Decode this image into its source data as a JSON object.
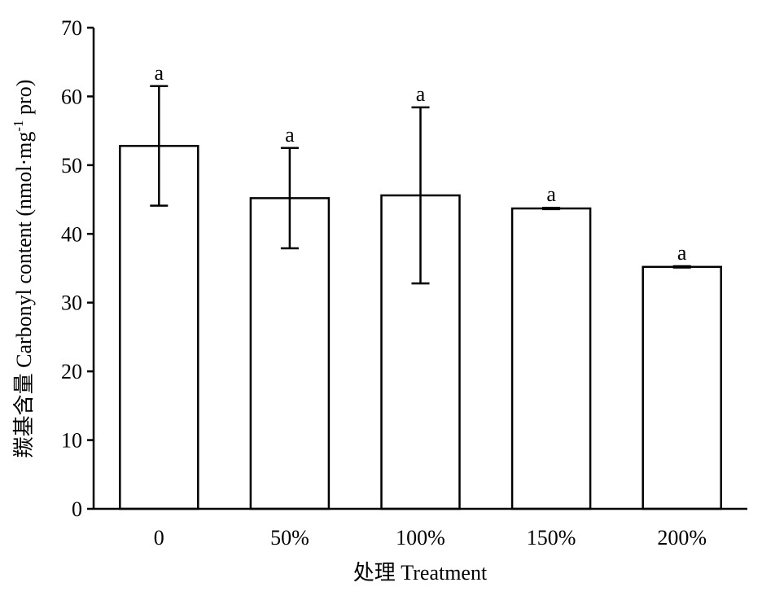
{
  "chart_data": {
    "type": "bar",
    "categories": [
      "0",
      "50%",
      "100%",
      "150%",
      "200%"
    ],
    "values": [
      52.8,
      45.2,
      45.6,
      43.7,
      35.2
    ],
    "errors": [
      8.7,
      7.3,
      12.8,
      0.1,
      0.1
    ],
    "significance": [
      "a",
      "a",
      "a",
      "a",
      "a"
    ],
    "color": "#ffffff",
    "ylim": [
      0,
      70
    ],
    "yticks": [
      0,
      10,
      20,
      30,
      40,
      50,
      60,
      70
    ],
    "xlabel": "处理 Treatment",
    "ylabel": {
      "main": "羰基含量 Carbonyl content (nmol·mg",
      "sup": "-1",
      "end": " pro)"
    }
  }
}
